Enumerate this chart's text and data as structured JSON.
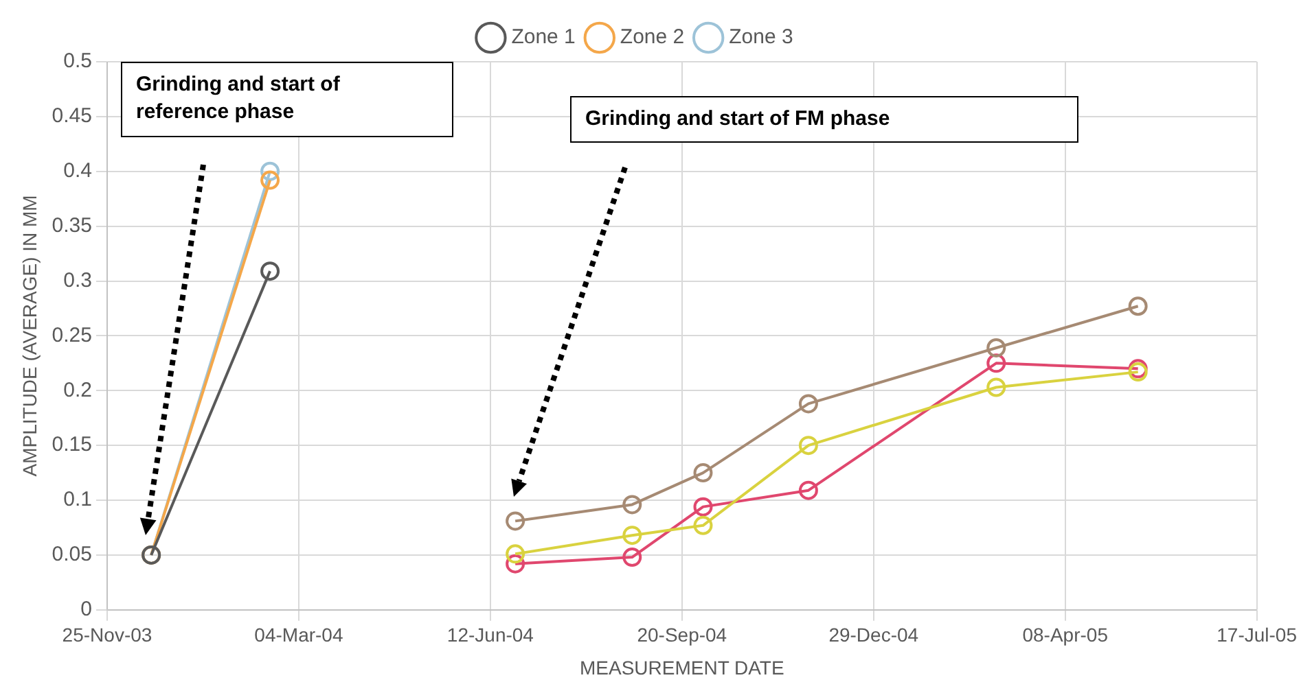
{
  "chart_data": {
    "type": "line",
    "xlabel": "MEASUREMENT DATE",
    "ylabel": "AMPLITUDE (AVERAGE) IN MM",
    "xlim": [
      "2003-11-25",
      "2005-07-17"
    ],
    "xticks": [
      {
        "value": "2003-11-25",
        "label": "25-Nov-03"
      },
      {
        "value": "2004-03-04",
        "label": "04-Mar-04"
      },
      {
        "value": "2004-06-12",
        "label": "12-Jun-04"
      },
      {
        "value": "2004-09-20",
        "label": "20-Sep-04"
      },
      {
        "value": "2004-12-29",
        "label": "29-Dec-04"
      },
      {
        "value": "2005-04-08",
        "label": "08-Apr-05"
      },
      {
        "value": "2005-07-17",
        "label": "17-Jul-05"
      }
    ],
    "ylim": [
      0,
      0.5
    ],
    "yticks": [
      0,
      0.05,
      0.1,
      0.15,
      0.2,
      0.25,
      0.3,
      0.35,
      0.4,
      0.45,
      0.5
    ],
    "grid": true,
    "legend": "top",
    "marker": "circle",
    "line_style": "solid",
    "series": [
      {
        "name": "Zone 1",
        "color": "#595959",
        "x": [
          "2003-12-18",
          "2004-02-18"
        ],
        "values": [
          0.05,
          0.309
        ]
      },
      {
        "name": "Zone 2",
        "color": "#f4a74a",
        "x": [
          "2003-12-18",
          "2004-02-18"
        ],
        "values": [
          0.05,
          0.392
        ]
      },
      {
        "name": "Zone 3",
        "color": "#9dc3d8",
        "x": [
          "2003-12-18",
          "2004-02-18"
        ],
        "values": [
          0.05,
          0.4
        ]
      },
      {
        "color": "#a68a73",
        "x": [
          "2004-06-25",
          "2004-08-25",
          "2004-10-01",
          "2004-11-25",
          "2005-03-03",
          "2005-05-16"
        ],
        "values": [
          0.081,
          0.096,
          0.125,
          0.188,
          0.239,
          0.277
        ]
      },
      {
        "color": "#d9d23f",
        "x": [
          "2004-06-25",
          "2004-08-25",
          "2004-10-01",
          "2004-11-25",
          "2005-03-03",
          "2005-05-16"
        ],
        "values": [
          0.051,
          0.068,
          0.077,
          0.15,
          0.203,
          0.217
        ]
      },
      {
        "color": "#e0476e",
        "x": [
          "2004-06-25",
          "2004-08-25",
          "2004-10-01",
          "2004-11-25",
          "2005-03-03",
          "2005-05-16"
        ],
        "values": [
          0.042,
          0.048,
          0.094,
          0.109,
          0.225,
          0.22
        ]
      }
    ],
    "annotations": [
      "Grinding and start of reference phase",
      "Grinding and start of FM phase"
    ]
  }
}
